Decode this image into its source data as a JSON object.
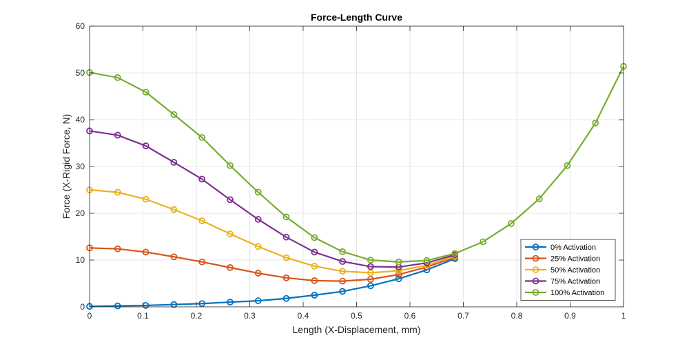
{
  "chart_data": {
    "type": "line",
    "title": "Force-Length Curve",
    "xlabel": "Length (X-Displacement, mm)",
    "ylabel": "Force (X-Rigid Force, N)",
    "xlim": [
      0,
      1
    ],
    "ylim": [
      0,
      60
    ],
    "xticks": [
      0,
      0.1,
      0.2,
      0.3,
      0.4,
      0.5,
      0.6,
      0.7,
      0.8,
      0.9,
      1
    ],
    "xtick_labels": [
      "0",
      "0.1",
      "0.2",
      "0.3",
      "0.4",
      "0.5",
      "0.6",
      "0.7",
      "0.8",
      "0.9",
      "1"
    ],
    "yticks": [
      0,
      10,
      20,
      30,
      40,
      50,
      60
    ],
    "ytick_labels": [
      "0",
      "10",
      "20",
      "30",
      "40",
      "50",
      "60"
    ],
    "grid": true,
    "legend_position": "bottom-right",
    "x": [
      0,
      0.0526,
      0.1053,
      0.1579,
      0.2105,
      0.2632,
      0.3158,
      0.3684,
      0.4211,
      0.4737,
      0.5263,
      0.5789,
      0.6316,
      0.6842,
      0.7368,
      0.7895,
      0.8421,
      0.8947,
      0.9474,
      1
    ],
    "series": [
      {
        "name": "0% Activation",
        "color": "#0072BD",
        "x": [
          0,
          0.0526,
          0.1053,
          0.1579,
          0.2105,
          0.2632,
          0.3158,
          0.3684,
          0.4211,
          0.4737,
          0.5263,
          0.5789,
          0.6316,
          0.6842
        ],
        "values": [
          0.1,
          0.2,
          0.3,
          0.5,
          0.7,
          1.0,
          1.3,
          1.8,
          2.5,
          3.3,
          4.5,
          6.0,
          7.9,
          10.3
        ]
      },
      {
        "name": "25% Activation",
        "color": "#D95319",
        "x": [
          0,
          0.0526,
          0.1053,
          0.1579,
          0.2105,
          0.2632,
          0.3158,
          0.3684,
          0.4211,
          0.4737,
          0.5263,
          0.5789,
          0.6316,
          0.6842
        ],
        "values": [
          12.6,
          12.4,
          11.7,
          10.7,
          9.6,
          8.4,
          7.2,
          6.2,
          5.6,
          5.5,
          5.9,
          6.9,
          8.5,
          10.6
        ]
      },
      {
        "name": "50% Activation",
        "color": "#EDB120",
        "x": [
          0,
          0.0526,
          0.1053,
          0.1579,
          0.2105,
          0.2632,
          0.3158,
          0.3684,
          0.4211,
          0.4737,
          0.5263,
          0.5789,
          0.6316,
          0.6842
        ],
        "values": [
          25.0,
          24.5,
          23.0,
          20.8,
          18.4,
          15.6,
          12.9,
          10.5,
          8.7,
          7.6,
          7.3,
          7.7,
          8.9,
          10.8
        ]
      },
      {
        "name": "75% Activation",
        "color": "#7E2F8E",
        "x": [
          0,
          0.0526,
          0.1053,
          0.1579,
          0.2105,
          0.2632,
          0.3158,
          0.3684,
          0.4211,
          0.4737,
          0.5263,
          0.5789,
          0.6316,
          0.6842
        ],
        "values": [
          37.6,
          36.7,
          34.4,
          30.9,
          27.3,
          22.9,
          18.7,
          14.9,
          11.7,
          9.7,
          8.6,
          8.5,
          9.4,
          11.1
        ]
      },
      {
        "name": "100% Activation",
        "color": "#77AC30",
        "x": [
          0,
          0.0526,
          0.1053,
          0.1579,
          0.2105,
          0.2632,
          0.3158,
          0.3684,
          0.4211,
          0.4737,
          0.5263,
          0.5789,
          0.6316,
          0.6842,
          0.7368,
          0.7895,
          0.8421,
          0.8947,
          0.9474,
          1
        ],
        "values": [
          50.1,
          49.0,
          45.9,
          41.1,
          36.2,
          30.2,
          24.5,
          19.2,
          14.8,
          11.8,
          10.0,
          9.6,
          9.9,
          11.4,
          13.9,
          17.8,
          23.1,
          30.2,
          39.3,
          51.4
        ]
      }
    ]
  }
}
